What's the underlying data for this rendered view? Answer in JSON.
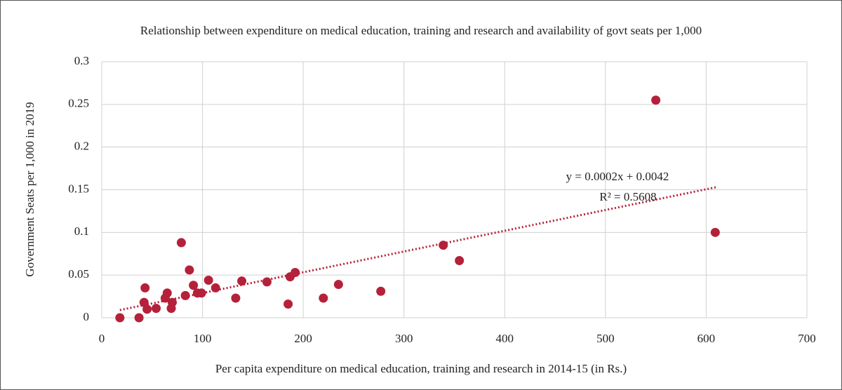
{
  "chart_data": {
    "type": "scatter",
    "title": "Relationship between expenditure on medical education, training and research and availability of govt seats per 1,000",
    "x_label": "Per capita expenditure on medical education, training and research in 2014-15 (in Rs.)",
    "y_label": "Government Seats per 1,000 in 2019",
    "series": [
      {
        "color": "#b5213a",
        "x": [
          18,
          37,
          42,
          43,
          45,
          54,
          63,
          65,
          69,
          70,
          79,
          83,
          87,
          91,
          95,
          99,
          106,
          113,
          133,
          139,
          164,
          185,
          187,
          192,
          220,
          235,
          277,
          339,
          355,
          550,
          609
        ],
        "values": [
          0,
          0,
          0.018,
          0.035,
          0.01,
          0.011,
          0.023,
          0.029,
          0.011,
          0.018,
          0.088,
          0.026,
          0.056,
          0.038,
          0.029,
          0.029,
          0.044,
          0.035,
          0.023,
          0.043,
          0.042,
          0.016,
          0.048,
          0.053,
          0.023,
          0.039,
          0.031,
          0.085,
          0.067,
          0.255,
          0.1
        ]
      }
    ],
    "trendline": {
      "color": "#b5213a",
      "x": [
        18,
        610
      ],
      "values": [
        0.009,
        0.153
      ],
      "equation": "y = 0.0002x + 0.0042",
      "r_squared": "R² = 0.5608"
    },
    "xlim": [
      0,
      700
    ],
    "xticks": [
      0,
      100,
      200,
      300,
      400,
      500,
      600,
      700
    ],
    "ylim": [
      0,
      0.3
    ],
    "yticks": [
      0,
      0.05,
      0.1,
      0.15,
      0.2,
      0.25,
      0.3
    ],
    "grid": true
  }
}
